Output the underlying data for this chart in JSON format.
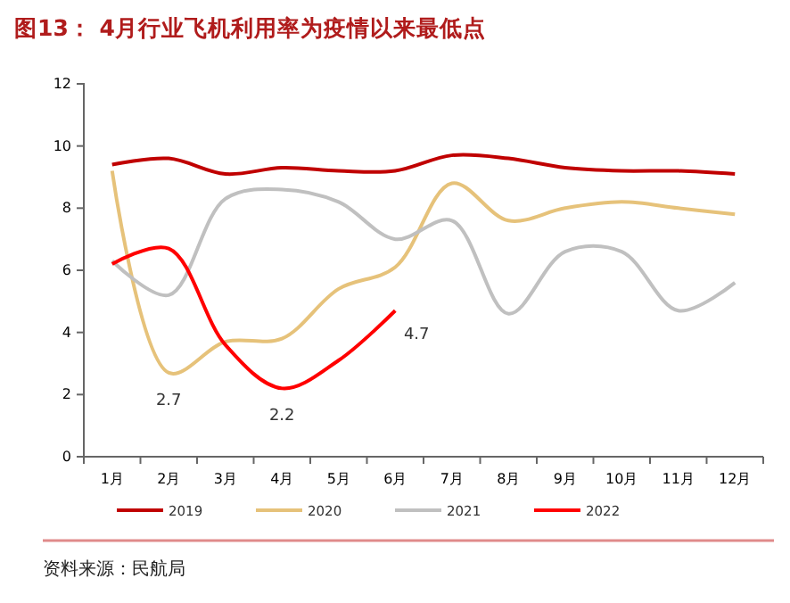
{
  "chart_data": {
    "type": "line",
    "title": "图13： 4月行业飞机利用率为疫情以来最低点",
    "categories": [
      "1月",
      "2月",
      "3月",
      "4月",
      "5月",
      "6月",
      "7月",
      "8月",
      "9月",
      "10月",
      "11月",
      "12月"
    ],
    "series": [
      {
        "name": "2019",
        "color": "#c00000",
        "values": [
          9.4,
          9.6,
          9.1,
          9.3,
          9.2,
          9.2,
          9.7,
          9.6,
          9.3,
          9.2,
          9.2,
          9.1
        ]
      },
      {
        "name": "2020",
        "color": "#e6c27a",
        "values": [
          9.2,
          2.7,
          3.7,
          3.8,
          5.4,
          6.1,
          8.8,
          7.6,
          8.0,
          8.2,
          8.0,
          7.8
        ],
        "value_labels": [
          null,
          "2.7",
          null,
          null,
          null,
          null,
          null,
          null,
          null,
          null,
          null,
          null
        ]
      },
      {
        "name": "2021",
        "color": "#c0c0c0",
        "values": [
          6.3,
          5.2,
          8.3,
          8.6,
          8.2,
          7.0,
          7.6,
          4.6,
          6.6,
          6.6,
          4.7,
          5.6
        ]
      },
      {
        "name": "2022",
        "color": "#ff0000",
        "values": [
          6.2,
          6.7,
          3.6,
          2.2,
          3.1,
          4.7,
          null,
          null,
          null,
          null,
          null,
          null
        ],
        "value_labels": [
          null,
          null,
          null,
          "2.2",
          null,
          "4.7",
          null,
          null,
          null,
          null,
          null,
          null
        ]
      }
    ],
    "ylim": [
      0,
      12
    ],
    "yticks": [
      0,
      2,
      4,
      6,
      8,
      10,
      12
    ],
    "grid": false,
    "legend": "bottom",
    "annotations": [
      "资料来源：民航局"
    ]
  }
}
